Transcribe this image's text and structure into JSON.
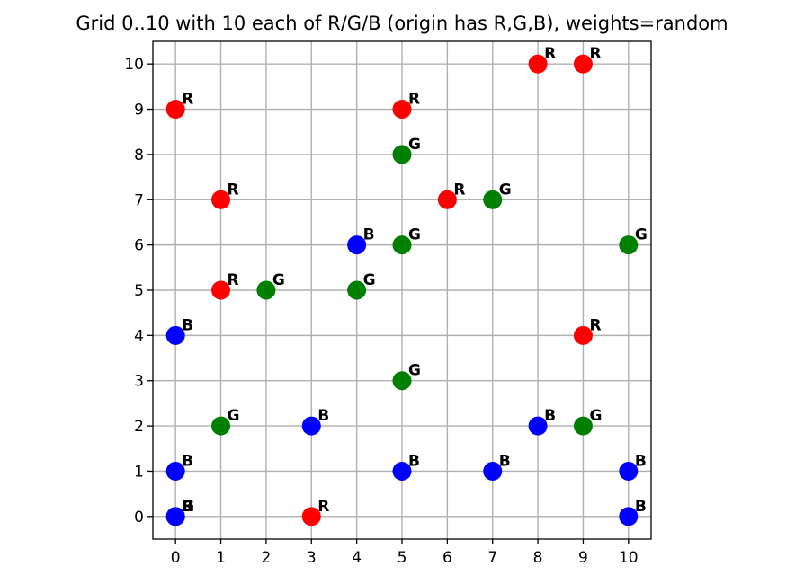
{
  "chart_data": {
    "type": "scatter",
    "title": "Grid 0..10 with 10 each of R/G/B (origin has R,G,B), weights=random",
    "xlabel": "",
    "ylabel": "",
    "xlim": [
      -0.5,
      10.5
    ],
    "ylim": [
      -0.5,
      10.5
    ],
    "xticks": [
      "0",
      "1",
      "2",
      "3",
      "4",
      "5",
      "6",
      "7",
      "8",
      "9",
      "10"
    ],
    "yticks": [
      "0",
      "1",
      "2",
      "3",
      "4",
      "5",
      "6",
      "7",
      "8",
      "9",
      "10"
    ],
    "grid": true,
    "series": [
      {
        "name": "R",
        "color": "#ff0000",
        "points": [
          {
            "x": 0,
            "y": 0,
            "label": "R"
          },
          {
            "x": 3,
            "y": 0,
            "label": "R"
          },
          {
            "x": 1,
            "y": 5,
            "label": "R"
          },
          {
            "x": 1,
            "y": 7,
            "label": "R"
          },
          {
            "x": 0,
            "y": 9,
            "label": "R"
          },
          {
            "x": 5,
            "y": 9,
            "label": "R"
          },
          {
            "x": 6,
            "y": 7,
            "label": "R"
          },
          {
            "x": 8,
            "y": 10,
            "label": "R"
          },
          {
            "x": 9,
            "y": 10,
            "label": "R"
          },
          {
            "x": 9,
            "y": 4,
            "label": "R"
          }
        ]
      },
      {
        "name": "G",
        "color": "#008000",
        "points": [
          {
            "x": 0,
            "y": 0,
            "label": "G"
          },
          {
            "x": 1,
            "y": 2,
            "label": "G"
          },
          {
            "x": 2,
            "y": 5,
            "label": "G"
          },
          {
            "x": 4,
            "y": 5,
            "label": "G"
          },
          {
            "x": 5,
            "y": 3,
            "label": "G"
          },
          {
            "x": 5,
            "y": 6,
            "label": "G"
          },
          {
            "x": 5,
            "y": 8,
            "label": "G"
          },
          {
            "x": 7,
            "y": 7,
            "label": "G"
          },
          {
            "x": 9,
            "y": 2,
            "label": "G"
          },
          {
            "x": 10,
            "y": 6,
            "label": "G"
          }
        ]
      },
      {
        "name": "B",
        "color": "#0000ff",
        "points": [
          {
            "x": 0,
            "y": 0,
            "label": "B"
          },
          {
            "x": 0,
            "y": 1,
            "label": "B"
          },
          {
            "x": 0,
            "y": 4,
            "label": "B"
          },
          {
            "x": 3,
            "y": 2,
            "label": "B"
          },
          {
            "x": 4,
            "y": 6,
            "label": "B"
          },
          {
            "x": 5,
            "y": 1,
            "label": "B"
          },
          {
            "x": 7,
            "y": 1,
            "label": "B"
          },
          {
            "x": 8,
            "y": 2,
            "label": "B"
          },
          {
            "x": 10,
            "y": 1,
            "label": "B"
          },
          {
            "x": 10,
            "y": 0,
            "label": "B"
          }
        ]
      }
    ]
  }
}
